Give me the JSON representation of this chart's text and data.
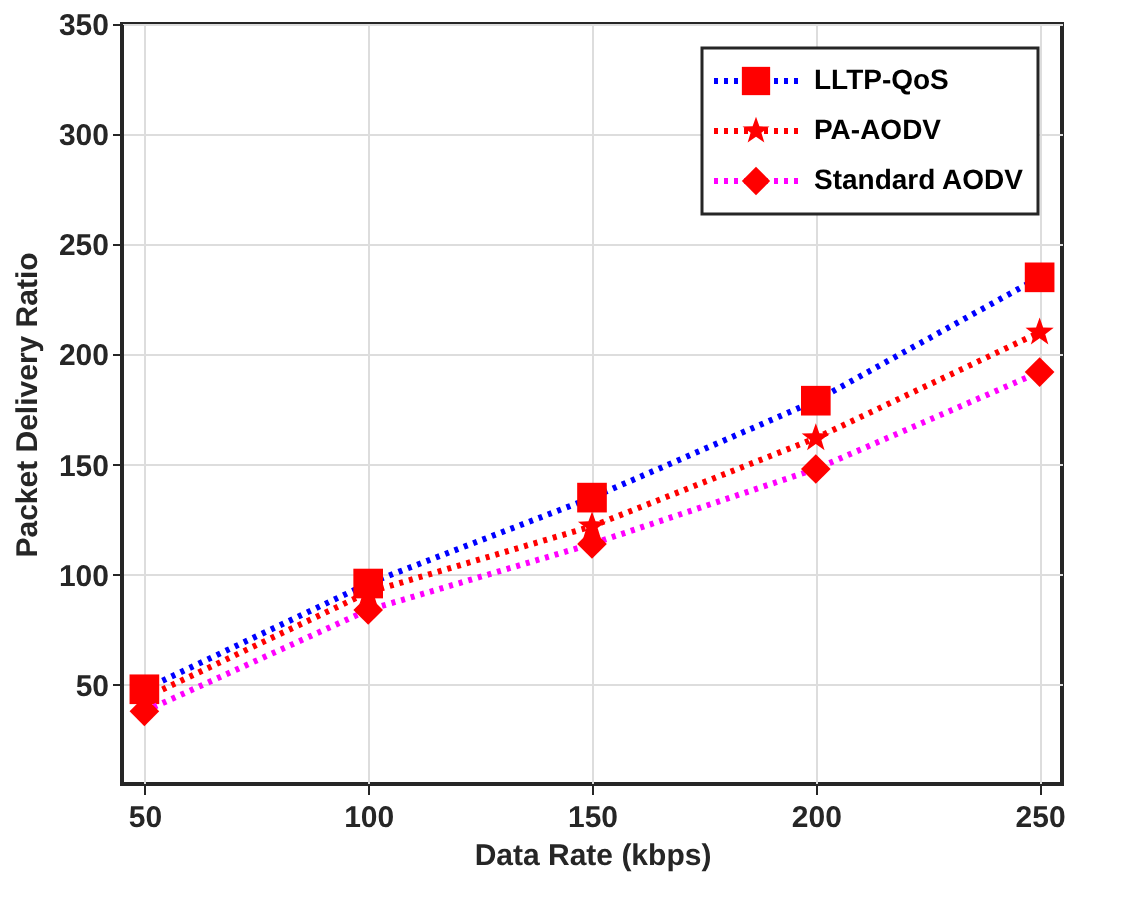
{
  "chart_data": {
    "type": "line",
    "xlabel": "Data Rate (kbps)",
    "ylabel": "Packet Delivery Ratio",
    "x": [
      50,
      100,
      150,
      200,
      250
    ],
    "series": [
      {
        "name": "LLTP-QoS",
        "color": "#0000ff",
        "colors": [
          "#ff0000",
          "#ff0000",
          "#ff0000",
          "#ff0000",
          "#ff0000"
        ],
        "marker": "square",
        "values": [
          48,
          96,
          135,
          179,
          235
        ]
      },
      {
        "name": "PA-AODV",
        "color": "#ff0000",
        "colors": [
          "#ff0000",
          "#ff0000",
          "#ff0000",
          "#ff0000",
          "#ff0000"
        ],
        "marker": "star",
        "values": [
          44,
          92,
          122,
          162,
          210
        ]
      },
      {
        "name": "Standard AODV",
        "color": "#ff00ff",
        "colors": [
          "#ff0000",
          "#ff0000",
          "#ff0000",
          "#ff0000",
          "#ff0000"
        ],
        "marker": "diamond",
        "values": [
          38,
          84,
          114,
          148,
          192
        ]
      }
    ],
    "xlim": [
      45,
      255
    ],
    "xticks": [
      50,
      100,
      150,
      200,
      250
    ],
    "ylim": [
      5,
      350
    ],
    "yticks": [
      50,
      100,
      150,
      200,
      250,
      300,
      350
    ],
    "grid": true,
    "legend": "top right",
    "line_style": "dotted"
  }
}
